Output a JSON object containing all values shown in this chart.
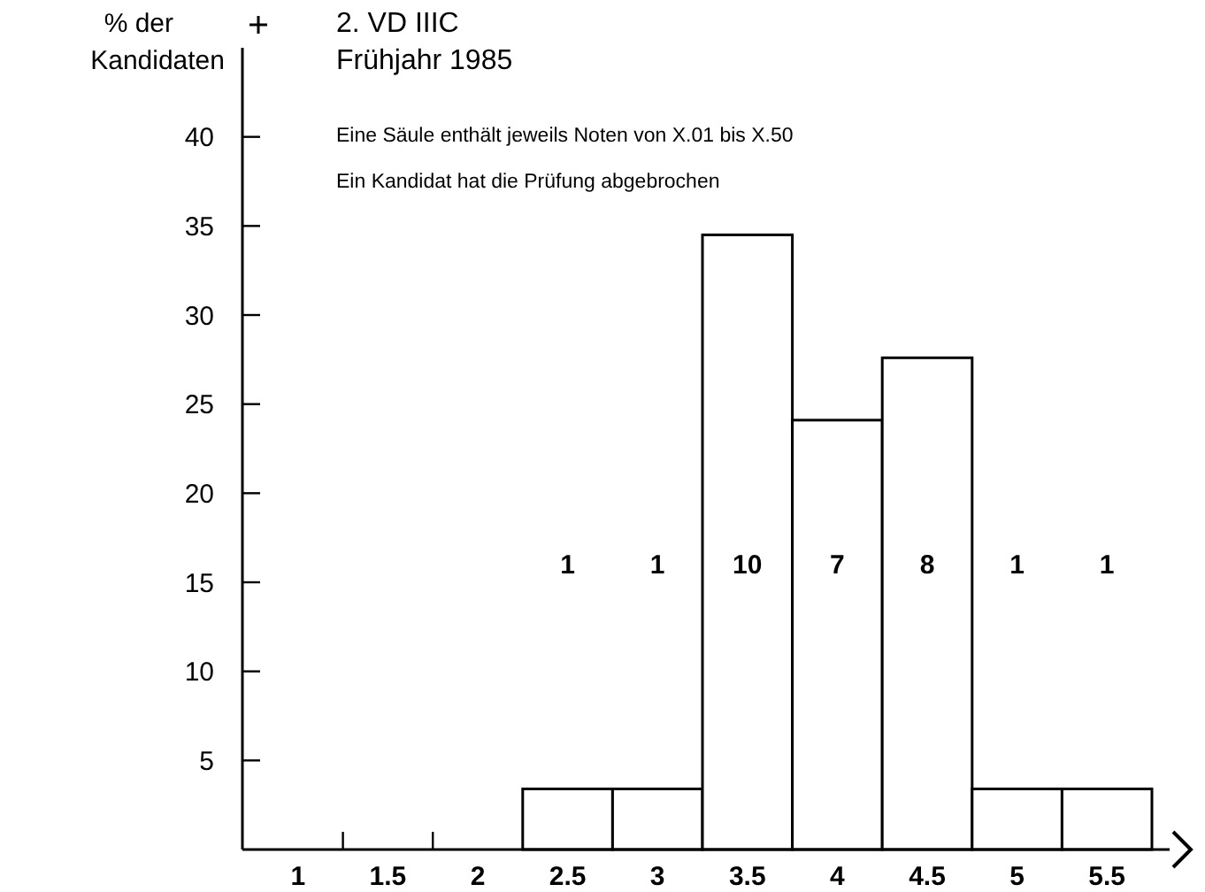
{
  "chart_data": {
    "type": "bar",
    "title": "2. VD IIIC",
    "subtitle": "Frühjahr 1985",
    "ylabel": "% der\nKandidaten",
    "annotations": [
      "Eine Säule enthält jeweils Noten von X.01 bis X.50",
      "Ein Kandidat hat die Prüfung abgebrochen",
      "1",
      "1",
      "10",
      "7",
      "8",
      "1",
      "1"
    ],
    "categories": [
      "1",
      "1.5",
      "2",
      "2.5",
      "3",
      "3.5",
      "4",
      "4.5",
      "5",
      "5.5"
    ],
    "values": [
      null,
      null,
      null,
      3.4,
      3.4,
      34.5,
      24.1,
      27.6,
      3.4,
      3.4
    ],
    "color": "#ffffff",
    "ylim": [
      0,
      45
    ],
    "yticks": [
      5,
      10,
      15,
      20,
      25,
      30,
      35,
      40
    ]
  }
}
